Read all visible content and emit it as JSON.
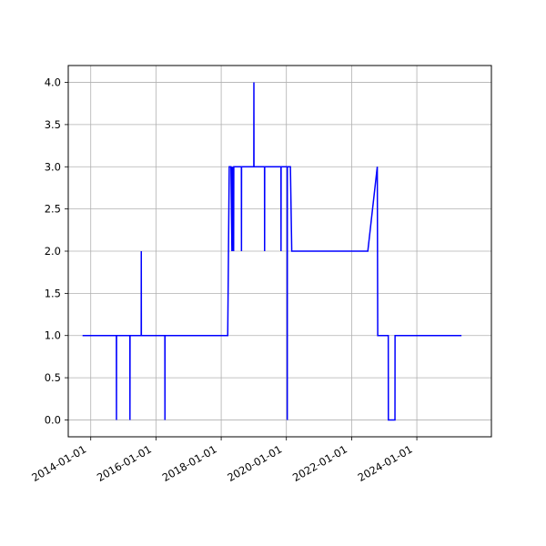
{
  "chart_data": {
    "type": "line",
    "title": "",
    "xlabel": "",
    "ylabel": "",
    "x_axis_type": "date",
    "xlim": [
      "2013-04-24",
      "2026-04-15"
    ],
    "ylim": [
      -0.2,
      4.2
    ],
    "grid": true,
    "line_color": "#0000ff",
    "xticks": [
      "2014-01-01",
      "2016-01-01",
      "2018-01-01",
      "2020-01-01",
      "2022-01-01",
      "2024-01-01"
    ],
    "yticks": [
      "0.0",
      "0.5",
      "1.0",
      "1.5",
      "2.0",
      "2.5",
      "3.0",
      "3.5",
      "4.0"
    ],
    "series": [
      {
        "x": [
          "2013-10-01",
          "2014-10-15",
          "2014-10-16",
          "2014-10-17",
          "2015-03-15",
          "2015-03-16",
          "2015-03-17",
          "2015-07-20",
          "2015-07-21",
          "2015-07-22",
          "2016-04-10",
          "2016-04-11",
          "2016-04-12",
          "2018-03-15",
          "2018-04-01",
          "2018-04-20",
          "2018-05-01",
          "2018-05-03",
          "2018-05-10",
          "2018-05-12",
          "2018-05-20",
          "2018-05-22",
          "2018-06-01",
          "2018-08-15",
          "2018-08-16",
          "2018-08-17",
          "2019-01-01",
          "2019-01-02",
          "2019-01-03",
          "2019-05-01",
          "2019-05-02",
          "2019-05-03",
          "2019-11-01",
          "2019-11-02",
          "2019-11-03",
          "2020-01-10",
          "2020-01-11",
          "2020-01-12",
          "2020-02-15",
          "2020-03-01",
          "2022-07-01",
          "2022-10-15",
          "2022-10-20",
          "2023-02-15",
          "2023-02-16",
          "2023-05-01",
          "2023-05-02",
          "2025-05-15"
        ],
        "y": [
          1,
          1,
          0,
          1,
          1,
          0,
          1,
          1,
          2,
          1,
          1,
          0,
          1,
          1,
          3,
          3,
          2,
          3,
          2,
          3,
          2,
          3,
          3,
          3,
          2,
          3,
          3,
          4,
          3,
          3,
          2,
          3,
          3,
          2,
          3,
          3,
          0,
          3,
          3,
          2,
          2,
          3,
          1,
          1,
          0,
          0,
          1,
          1
        ]
      }
    ]
  }
}
